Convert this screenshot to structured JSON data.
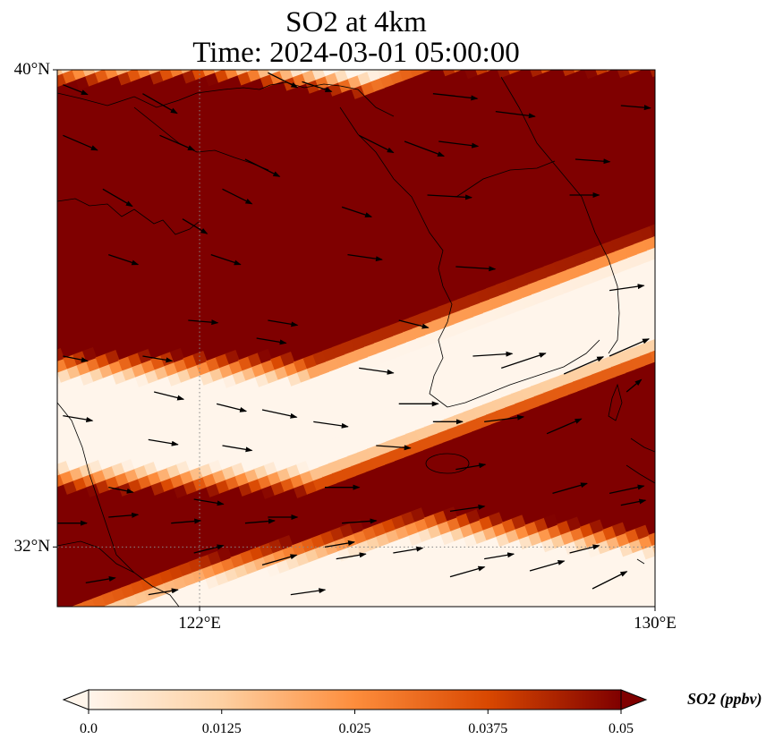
{
  "title": {
    "line1": "SO2 at 4km",
    "line2": "Time: 2024-03-01 05:00:00"
  },
  "map": {
    "lon_range": [
      119.5,
      130
    ],
    "lat_range": [
      31,
      40
    ],
    "projection": "PlateCarree",
    "x_ticks": [
      {
        "lon": 122,
        "label": "122°E"
      },
      {
        "lon": 130,
        "label": "130°E"
      }
    ],
    "y_ticks": [
      {
        "lat": 40,
        "label": "40°N"
      },
      {
        "lat": 32,
        "label": "32°N"
      }
    ],
    "gridlines": {
      "style": "dotted",
      "color": "#888888",
      "lons": [
        122
      ],
      "lats": [
        32
      ]
    },
    "coastline_color": "#000000"
  },
  "field": {
    "variable": "SO2",
    "level": "4km",
    "description": "Two high-concentration bands (≥0.05 ppbv) separated by a low band oriented WSW-ENE",
    "low_band_center_line": [
      [
        119.5,
        34.1
      ],
      [
        124,
        34.05
      ],
      [
        130,
        36.2
      ]
    ],
    "low_band_half_width_deg": 0.7,
    "southern_low_region_edge": [
      [
        119.5,
        31.0
      ],
      [
        122,
        31.8
      ],
      [
        126,
        32.6
      ],
      [
        130,
        32.3
      ]
    ],
    "northern_low_region_edge": [
      [
        119.5,
        39.9
      ],
      [
        122,
        40.0
      ],
      [
        125,
        39.7
      ],
      [
        126,
        40.1
      ]
    ],
    "colors": {
      "low": "#fff5eb",
      "mid": "#fd8d3c",
      "high": "#7f0000"
    }
  },
  "wind_arrows": [
    {
      "lon": 119.6,
      "lat": 39.75,
      "u": 0.5,
      "v": -0.2
    },
    {
      "lon": 121.0,
      "lat": 39.6,
      "u": 0.7,
      "v": -0.4
    },
    {
      "lon": 123.2,
      "lat": 39.95,
      "u": 0.6,
      "v": -0.3
    },
    {
      "lon": 123.8,
      "lat": 39.8,
      "u": 0.6,
      "v": -0.2
    },
    {
      "lon": 126.1,
      "lat": 39.6,
      "u": 0.9,
      "v": -0.1
    },
    {
      "lon": 127.2,
      "lat": 39.3,
      "u": 0.8,
      "v": -0.1
    },
    {
      "lon": 129.4,
      "lat": 39.4,
      "u": 0.6,
      "v": -0.05
    },
    {
      "lon": 119.6,
      "lat": 38.9,
      "u": 0.7,
      "v": -0.3
    },
    {
      "lon": 121.3,
      "lat": 38.9,
      "u": 0.7,
      "v": -0.3
    },
    {
      "lon": 122.8,
      "lat": 38.5,
      "u": 0.7,
      "v": -0.35
    },
    {
      "lon": 124.8,
      "lat": 38.9,
      "u": 0.7,
      "v": -0.35
    },
    {
      "lon": 125.6,
      "lat": 38.8,
      "u": 0.8,
      "v": -0.3
    },
    {
      "lon": 126.2,
      "lat": 38.8,
      "u": 0.8,
      "v": -0.1
    },
    {
      "lon": 128.6,
      "lat": 38.5,
      "u": 0.7,
      "v": -0.05
    },
    {
      "lon": 120.3,
      "lat": 38.0,
      "u": 0.6,
      "v": -0.35
    },
    {
      "lon": 121.7,
      "lat": 37.5,
      "u": 0.5,
      "v": -0.3
    },
    {
      "lon": 122.4,
      "lat": 38.0,
      "u": 0.6,
      "v": -0.3
    },
    {
      "lon": 124.5,
      "lat": 37.7,
      "u": 0.6,
      "v": -0.2
    },
    {
      "lon": 126.0,
      "lat": 37.9,
      "u": 0.9,
      "v": -0.05
    },
    {
      "lon": 128.5,
      "lat": 37.9,
      "u": 0.6,
      "v": 0.0
    },
    {
      "lon": 120.4,
      "lat": 36.9,
      "u": 0.6,
      "v": -0.2
    },
    {
      "lon": 122.2,
      "lat": 36.9,
      "u": 0.6,
      "v": -0.2
    },
    {
      "lon": 124.6,
      "lat": 36.9,
      "u": 0.7,
      "v": -0.1
    },
    {
      "lon": 126.5,
      "lat": 36.7,
      "u": 0.8,
      "v": -0.05
    },
    {
      "lon": 129.2,
      "lat": 36.3,
      "u": 0.7,
      "v": 0.1
    },
    {
      "lon": 121.8,
      "lat": 35.8,
      "u": 0.6,
      "v": -0.05
    },
    {
      "lon": 123.2,
      "lat": 35.8,
      "u": 0.6,
      "v": -0.1
    },
    {
      "lon": 125.5,
      "lat": 35.8,
      "u": 0.6,
      "v": -0.15
    },
    {
      "lon": 119.6,
      "lat": 35.2,
      "u": 0.5,
      "v": -0.1
    },
    {
      "lon": 121.0,
      "lat": 35.2,
      "u": 0.6,
      "v": -0.1
    },
    {
      "lon": 123.0,
      "lat": 35.5,
      "u": 0.6,
      "v": -0.1
    },
    {
      "lon": 124.8,
      "lat": 35.0,
      "u": 0.7,
      "v": -0.1
    },
    {
      "lon": 127.3,
      "lat": 35.0,
      "u": 0.9,
      "v": 0.3
    },
    {
      "lon": 129.2,
      "lat": 35.2,
      "u": 0.8,
      "v": 0.35
    },
    {
      "lon": 121.2,
      "lat": 34.6,
      "u": 0.6,
      "v": -0.15
    },
    {
      "lon": 122.3,
      "lat": 34.4,
      "u": 0.6,
      "v": -0.15
    },
    {
      "lon": 123.1,
      "lat": 34.3,
      "u": 0.7,
      "v": -0.15
    },
    {
      "lon": 124.0,
      "lat": 34.1,
      "u": 0.7,
      "v": -0.1
    },
    {
      "lon": 125.5,
      "lat": 34.4,
      "u": 0.8,
      "v": 0.0
    },
    {
      "lon": 126.8,
      "lat": 35.2,
      "u": 0.8,
      "v": 0.05
    },
    {
      "lon": 128.4,
      "lat": 34.9,
      "u": 0.8,
      "v": 0.35
    },
    {
      "lon": 129.5,
      "lat": 34.6,
      "u": 0.3,
      "v": 0.25
    },
    {
      "lon": 119.6,
      "lat": 34.2,
      "u": 0.6,
      "v": -0.1
    },
    {
      "lon": 121.1,
      "lat": 33.8,
      "u": 0.6,
      "v": -0.1
    },
    {
      "lon": 122.4,
      "lat": 33.7,
      "u": 0.6,
      "v": -0.1
    },
    {
      "lon": 126.1,
      "lat": 34.1,
      "u": 0.6,
      "v": 0.0
    },
    {
      "lon": 125.1,
      "lat": 33.7,
      "u": 0.7,
      "v": -0.05
    },
    {
      "lon": 127.0,
      "lat": 34.1,
      "u": 0.8,
      "v": 0.1
    },
    {
      "lon": 128.1,
      "lat": 33.9,
      "u": 0.7,
      "v": 0.3
    },
    {
      "lon": 124.2,
      "lat": 33.0,
      "u": 0.7,
      "v": 0.0
    },
    {
      "lon": 126.5,
      "lat": 33.3,
      "u": 0.6,
      "v": 0.1
    },
    {
      "lon": 120.4,
      "lat": 33.0,
      "u": 0.5,
      "v": -0.1
    },
    {
      "lon": 121.9,
      "lat": 32.8,
      "u": 0.6,
      "v": -0.1
    },
    {
      "lon": 123.2,
      "lat": 32.5,
      "u": 0.6,
      "v": 0.0
    },
    {
      "lon": 124.5,
      "lat": 32.4,
      "u": 0.7,
      "v": 0.05
    },
    {
      "lon": 126.4,
      "lat": 32.6,
      "u": 0.7,
      "v": 0.1
    },
    {
      "lon": 128.2,
      "lat": 32.9,
      "u": 0.7,
      "v": 0.2
    },
    {
      "lon": 129.2,
      "lat": 32.9,
      "u": 0.7,
      "v": 0.15
    },
    {
      "lon": 129.4,
      "lat": 32.7,
      "u": 0.5,
      "v": 0.1
    },
    {
      "lon": 119.5,
      "lat": 32.4,
      "u": 0.6,
      "v": 0.0
    },
    {
      "lon": 120.4,
      "lat": 32.5,
      "u": 0.6,
      "v": 0.05
    },
    {
      "lon": 121.5,
      "lat": 32.4,
      "u": 0.6,
      "v": 0.05
    },
    {
      "lon": 122.8,
      "lat": 32.4,
      "u": 0.6,
      "v": 0.05
    },
    {
      "lon": 124.2,
      "lat": 32.0,
      "u": 0.6,
      "v": 0.1
    },
    {
      "lon": 125.4,
      "lat": 31.9,
      "u": 0.6,
      "v": 0.1
    },
    {
      "lon": 127.0,
      "lat": 31.8,
      "u": 0.6,
      "v": 0.1
    },
    {
      "lon": 128.5,
      "lat": 31.9,
      "u": 0.6,
      "v": 0.15
    },
    {
      "lon": 130.0,
      "lat": 31.4,
      "u": 0.4,
      "v": 0.2
    },
    {
      "lon": 121.9,
      "lat": 31.9,
      "u": 0.6,
      "v": 0.15
    },
    {
      "lon": 123.1,
      "lat": 31.7,
      "u": 0.7,
      "v": 0.2
    },
    {
      "lon": 124.4,
      "lat": 31.8,
      "u": 0.6,
      "v": 0.1
    },
    {
      "lon": 126.4,
      "lat": 31.5,
      "u": 0.7,
      "v": 0.2
    },
    {
      "lon": 127.8,
      "lat": 31.6,
      "u": 0.7,
      "v": 0.2
    },
    {
      "lon": 120.0,
      "lat": 31.4,
      "u": 0.6,
      "v": 0.1
    },
    {
      "lon": 121.1,
      "lat": 31.2,
      "u": 0.6,
      "v": 0.1
    },
    {
      "lon": 123.6,
      "lat": 31.2,
      "u": 0.7,
      "v": 0.1
    },
    {
      "lon": 128.9,
      "lat": 31.3,
      "u": 0.7,
      "v": 0.35
    }
  ],
  "colorbar": {
    "title": "SO2 (ppbv)",
    "range": [
      0.0,
      0.05
    ],
    "extend": "both",
    "ticks": [
      {
        "value": 0.0,
        "label": "0.0"
      },
      {
        "value": 0.0125,
        "label": "0.0125"
      },
      {
        "value": 0.025,
        "label": "0.025"
      },
      {
        "value": 0.0375,
        "label": "0.0375"
      },
      {
        "value": 0.05,
        "label": "0.05"
      }
    ],
    "stops": [
      {
        "value": 0.0,
        "color": "#fff5eb"
      },
      {
        "value": 0.0125,
        "color": "#fdd0a2"
      },
      {
        "value": 0.025,
        "color": "#fd8d3c"
      },
      {
        "value": 0.0375,
        "color": "#d94801"
      },
      {
        "value": 0.05,
        "color": "#7f0000"
      }
    ]
  }
}
